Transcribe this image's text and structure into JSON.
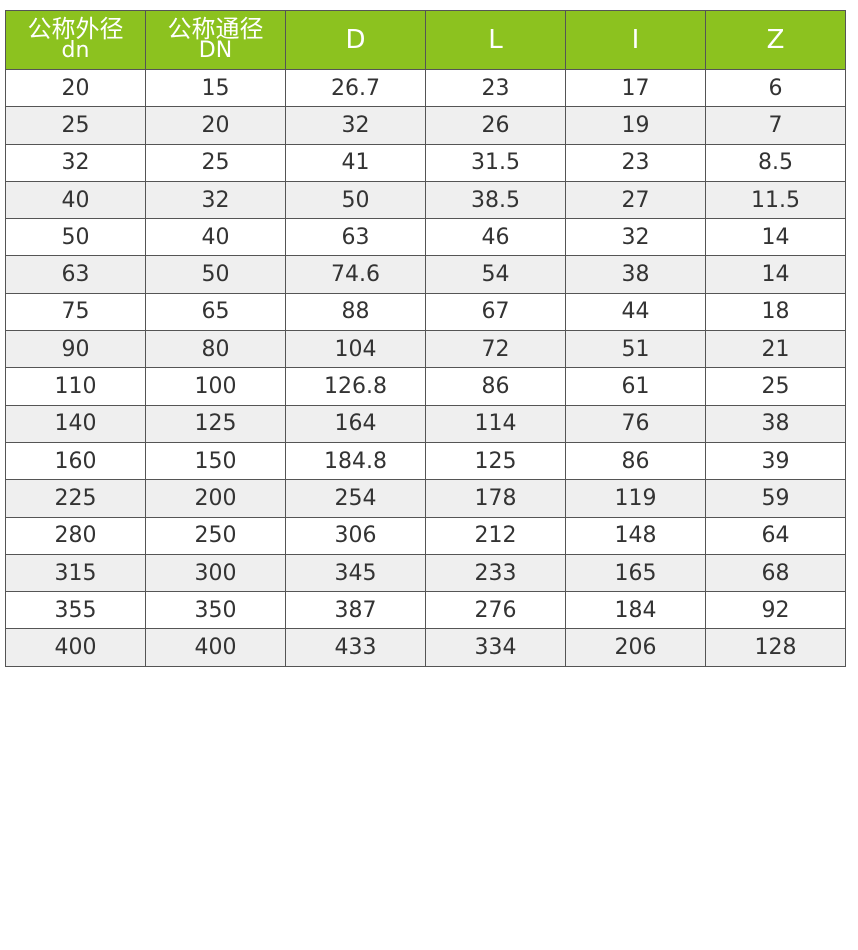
{
  "colors": {
    "header_bg": "#8cc21f",
    "header_text": "#ffffff",
    "alt_row": "#efefef"
  },
  "table": {
    "headers": [
      {
        "line1": "公称外径",
        "line2": "dn"
      },
      {
        "line1": "公称通径",
        "line2": "DN"
      },
      {
        "line1": "D"
      },
      {
        "line1": "L"
      },
      {
        "line1": "I"
      },
      {
        "line1": "Z"
      }
    ],
    "rows": [
      [
        "20",
        "15",
        "26.7",
        "23",
        "17",
        "6"
      ],
      [
        "25",
        "20",
        "32",
        "26",
        "19",
        "7"
      ],
      [
        "32",
        "25",
        "41",
        "31.5",
        "23",
        "8.5"
      ],
      [
        "40",
        "32",
        "50",
        "38.5",
        "27",
        "11.5"
      ],
      [
        "50",
        "40",
        "63",
        "46",
        "32",
        "14"
      ],
      [
        "63",
        "50",
        "74.6",
        "54",
        "38",
        "14"
      ],
      [
        "75",
        "65",
        "88",
        "67",
        "44",
        "18"
      ],
      [
        "90",
        "80",
        "104",
        "72",
        "51",
        "21"
      ],
      [
        "110",
        "100",
        "126.8",
        "86",
        "61",
        "25"
      ],
      [
        "140",
        "125",
        "164",
        "114",
        "76",
        "38"
      ],
      [
        "160",
        "150",
        "184.8",
        "125",
        "86",
        "39"
      ],
      [
        "225",
        "200",
        "254",
        "178",
        "119",
        "59"
      ],
      [
        "280",
        "250",
        "306",
        "212",
        "148",
        "64"
      ],
      [
        "315",
        "300",
        "345",
        "233",
        "165",
        "68"
      ],
      [
        "355",
        "350",
        "387",
        "276",
        "184",
        "92"
      ],
      [
        "400",
        "400",
        "433",
        "334",
        "206",
        "128"
      ]
    ]
  }
}
